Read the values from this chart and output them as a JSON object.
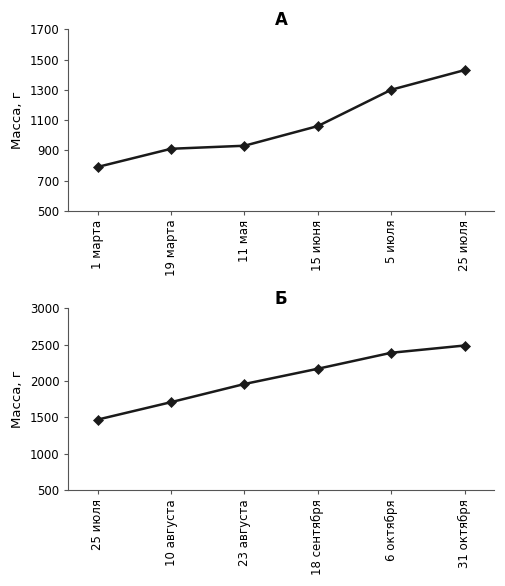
{
  "plot_A": {
    "x_labels": [
      "1 марта",
      "19 марта",
      "11 мая",
      "15 июня",
      "5 июля",
      "25 июля"
    ],
    "y_values": [
      790,
      910,
      930,
      1060,
      1300,
      1430
    ],
    "title": "А",
    "ylabel": "Масса, г",
    "ylim": [
      500,
      1700
    ],
    "yticks": [
      500,
      700,
      900,
      1100,
      1300,
      1500,
      1700
    ]
  },
  "plot_B": {
    "x_labels": [
      "25 июля",
      "10 августа",
      "23 августа",
      "18 сентября",
      "6 октября",
      "31 октября"
    ],
    "y_values": [
      1470,
      1710,
      1960,
      2170,
      2390,
      2490
    ],
    "title": "Б",
    "ylabel": "Масса, г",
    "ylim": [
      500,
      3000
    ],
    "yticks": [
      500,
      1000,
      1500,
      2000,
      2500,
      3000
    ]
  },
  "line_color": "#1a1a1a",
  "marker": "D",
  "marker_size": 5,
  "marker_facecolor": "#1a1a1a",
  "linewidth": 1.8,
  "bg_color": "#ffffff",
  "tick_fontsize": 8.5,
  "label_fontsize": 9.5,
  "title_fontsize": 12
}
